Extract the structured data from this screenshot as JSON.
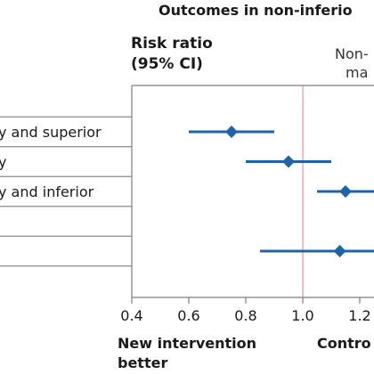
{
  "chart_data": {
    "type": "scatter",
    "title": "Outcomes in non-inferio",
    "ylabel_line1": "Risk ratio",
    "ylabel_line2": "(95% CI)",
    "margin_label_line1": "Non-",
    "margin_label_line2": "ma",
    "margin_value": 1.2,
    "reference_value": 1.0,
    "xlim": [
      0.4,
      1.3
    ],
    "x_ticks": [
      0.4,
      0.6,
      0.8,
      1.0,
      1.2
    ],
    "x_tick_labels": [
      "0.4",
      "0.6",
      "0.8",
      "1.0",
      "1.2"
    ],
    "left_note_line1": "New intervention",
    "left_note_line2": "better",
    "right_note": "Contro",
    "rows": [
      {
        "label": "y and superior",
        "estimate": 0.75,
        "ci_low": 0.6,
        "ci_high": 0.9
      },
      {
        "label": "y",
        "estimate": 0.95,
        "ci_low": 0.8,
        "ci_high": 1.1
      },
      {
        "label": "y and inferior",
        "estimate": 1.15,
        "ci_low": 1.05,
        "ci_high": 1.25
      },
      {
        "label": "",
        "estimate": null,
        "ci_low": null,
        "ci_high": null
      },
      {
        "label": "",
        "estimate": 1.13,
        "ci_low": 0.85,
        "ci_high": 1.3
      }
    ],
    "colors": {
      "point": "#1f64a8",
      "reference": "#e8a3a6",
      "margin": "#7f7f7f",
      "axis": "#7f7f7f",
      "row_line": "#8a8a8a"
    }
  }
}
